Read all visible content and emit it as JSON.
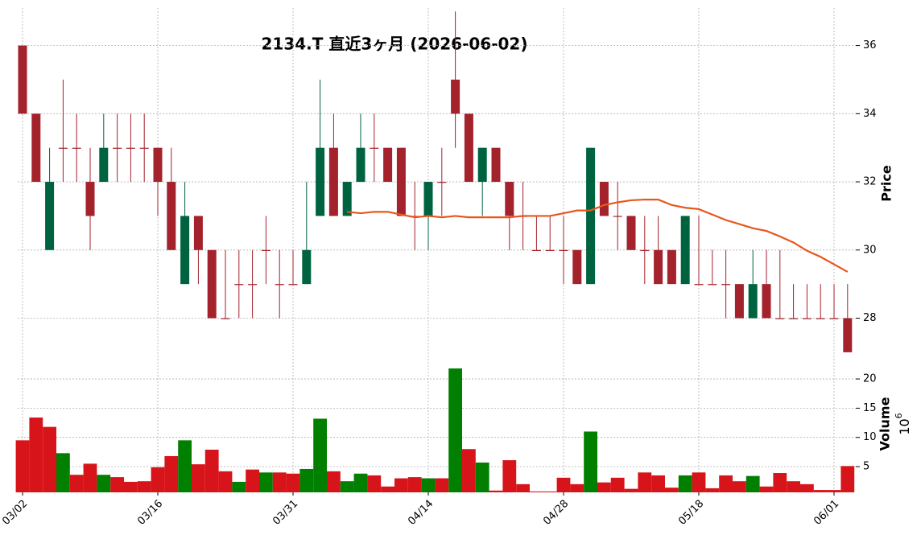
{
  "chart_data": {
    "type": "candlestick",
    "title": "2134.T  直近3ヶ月  (2026-06-02)",
    "categories": [
      "03/02",
      null,
      null,
      null,
      null,
      null,
      null,
      null,
      null,
      null,
      "03/16",
      null,
      null,
      null,
      null,
      null,
      null,
      null,
      null,
      null,
      "03/31",
      null,
      null,
      null,
      null,
      null,
      null,
      null,
      null,
      null,
      "04/14",
      null,
      null,
      null,
      null,
      null,
      null,
      null,
      null,
      null,
      "04/28",
      null,
      null,
      null,
      null,
      null,
      null,
      null,
      null,
      null,
      "05/18",
      null,
      null,
      null,
      null,
      null,
      null,
      null,
      null,
      null,
      "06/01",
      null
    ],
    "open": [
      36,
      34,
      30,
      33,
      33,
      32,
      32,
      33,
      33,
      33,
      33,
      32,
      29,
      31,
      30,
      28,
      29,
      29,
      30,
      29,
      29,
      29,
      31,
      33,
      31,
      32,
      33,
      33,
      33,
      31,
      31,
      32,
      35,
      34,
      32,
      33,
      32,
      31,
      30,
      30,
      30,
      30,
      29,
      32,
      31,
      31,
      30,
      30,
      30,
      29,
      29,
      29,
      29,
      29,
      28,
      29,
      28,
      28,
      28,
      28,
      28,
      28
    ],
    "high": [
      36,
      34,
      33,
      35,
      34,
      33,
      34,
      34,
      34,
      34,
      33,
      33,
      32,
      31,
      30,
      30,
      30,
      30,
      31,
      30,
      30,
      32,
      35,
      34,
      32,
      34,
      34,
      33,
      33,
      32,
      32,
      33,
      37,
      34,
      33,
      33,
      32,
      32,
      31,
      31,
      31,
      30,
      33,
      32,
      32,
      31,
      31,
      31,
      30,
      31,
      31,
      30,
      30,
      29,
      30,
      30,
      30,
      29,
      29,
      29,
      29,
      29
    ],
    "low": [
      34,
      32,
      30,
      32,
      32,
      30,
      32,
      32,
      32,
      32,
      31,
      30,
      29,
      29,
      28,
      28,
      28,
      28,
      29,
      28,
      29,
      29,
      31,
      31,
      31,
      32,
      32,
      32,
      31,
      30,
      30,
      31,
      33,
      32,
      31,
      32,
      30,
      30,
      30,
      30,
      29,
      29,
      29,
      31,
      30,
      30,
      29,
      29,
      29,
      29,
      29,
      29,
      28,
      28,
      28,
      28,
      28,
      28,
      28,
      28,
      28,
      27
    ],
    "close": [
      34,
      32,
      32,
      33,
      33,
      31,
      33,
      33,
      33,
      33,
      32,
      30,
      31,
      30,
      28,
      28,
      29,
      29,
      30,
      29,
      29,
      30,
      33,
      31,
      32,
      33,
      33,
      32,
      31,
      31,
      32,
      32,
      34,
      32,
      33,
      32,
      31,
      31,
      30,
      30,
      30,
      29,
      33,
      31,
      31,
      30,
      30,
      29,
      29,
      31,
      29,
      29,
      29,
      28,
      29,
      28,
      28,
      28,
      28,
      28,
      28,
      27
    ],
    "up_color": "#006340",
    "down_color": "#a3222b",
    "ylabel": "Price",
    "ylim": [
      26.95,
      37.1
    ],
    "yticks": [
      28,
      30,
      32,
      34,
      36
    ],
    "grid": true,
    "moving_average": {
      "color": "#e8561c",
      "values": [
        null,
        null,
        null,
        null,
        null,
        null,
        null,
        null,
        null,
        null,
        null,
        null,
        null,
        null,
        null,
        null,
        null,
        null,
        null,
        null,
        null,
        null,
        null,
        null,
        31.12,
        31.08,
        31.12,
        31.12,
        31.04,
        30.96,
        31.0,
        30.96,
        31.0,
        30.96,
        30.96,
        30.96,
        30.96,
        31.0,
        31.0,
        31.0,
        31.08,
        31.16,
        31.16,
        31.32,
        31.4,
        31.46,
        31.48,
        31.48,
        31.32,
        31.24,
        31.2,
        31.04,
        30.88,
        30.76,
        30.64,
        30.56,
        30.4,
        30.22,
        29.98,
        29.8,
        29.58,
        29.36
      ]
    },
    "volume": {
      "label": "Volume",
      "offset_base": "10",
      "offset_exponent": "6",
      "up_color": "#007f00",
      "down_color": "#d7141a",
      "values": [
        9.5,
        13.4,
        11.8,
        7.3,
        3.6,
        5.5,
        3.6,
        3.2,
        2.4,
        2.5,
        4.9,
        6.8,
        9.5,
        5.4,
        7.9,
        4.2,
        2.4,
        4.5,
        4.0,
        4.0,
        3.8,
        4.6,
        13.2,
        4.2,
        2.5,
        3.8,
        3.5,
        1.6,
        3.0,
        3.2,
        3.0,
        3.0,
        21.8,
        8.0,
        5.7,
        0.9,
        6.1,
        2.0,
        0.75,
        0.75,
        3.1,
        2.0,
        11.0,
        2.3,
        3.1,
        1.2,
        4.0,
        3.5,
        1.4,
        3.5,
        4.0,
        1.3,
        3.5,
        2.5,
        3.4,
        1.6,
        3.9,
        2.5,
        2.0,
        1.0,
        1.0,
        5.1
      ],
      "ylim": [
        0.6,
        24
      ],
      "yticks": [
        5,
        10,
        15,
        20
      ]
    }
  }
}
